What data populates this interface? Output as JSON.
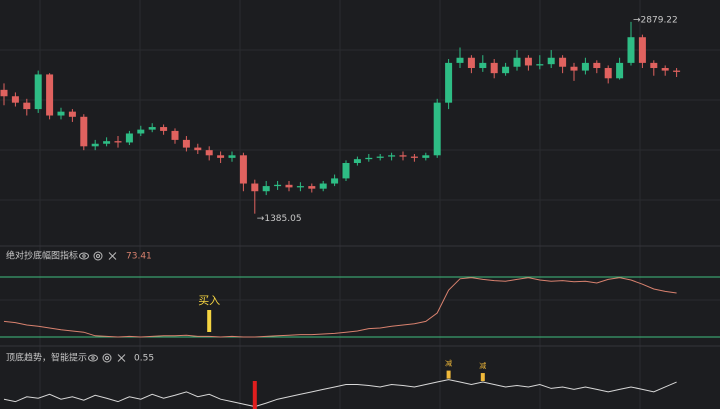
{
  "chart_data": [
    {
      "type": "candlestick",
      "up_color": "#2ebd85",
      "down_color": "#e0625f",
      "ylim": [
        1180,
        3050
      ],
      "open": [
        2350,
        2300,
        2250,
        2200,
        2470,
        2150,
        2180,
        2140,
        1910,
        1930,
        1950,
        1940,
        2010,
        2040,
        2060,
        2030,
        1960,
        1900,
        1880,
        1840,
        1820,
        1840,
        1620,
        1560,
        1600,
        1610,
        1590,
        1600,
        1580,
        1620,
        1660,
        1780,
        1810,
        1820,
        1830,
        1840,
        1830,
        1820,
        1840,
        2250,
        2560,
        2600,
        2520,
        2560,
        2480,
        2530,
        2600,
        2540,
        2550,
        2600,
        2530,
        2500,
        2560,
        2520,
        2440,
        2560,
        2760,
        2560,
        2520,
        2500
      ],
      "high": [
        2400,
        2330,
        2280,
        2500,
        2480,
        2210,
        2200,
        2160,
        1960,
        1980,
        1990,
        2030,
        2070,
        2090,
        2080,
        2050,
        1990,
        1930,
        1910,
        1870,
        1870,
        1860,
        1650,
        1640,
        1640,
        1640,
        1630,
        1620,
        1640,
        1690,
        1800,
        1830,
        1850,
        1850,
        1860,
        1870,
        1850,
        1860,
        2280,
        2590,
        2680,
        2620,
        2620,
        2590,
        2560,
        2660,
        2620,
        2620,
        2660,
        2620,
        2560,
        2600,
        2580,
        2540,
        2600,
        2879.22,
        2780,
        2580,
        2540,
        2520
      ],
      "low": [
        2230,
        2220,
        2150,
        2170,
        2120,
        2120,
        2100,
        1880,
        1880,
        1910,
        1900,
        1920,
        1990,
        2020,
        2000,
        1930,
        1870,
        1850,
        1800,
        1780,
        1790,
        1560,
        1385.05,
        1530,
        1570,
        1560,
        1560,
        1550,
        1560,
        1600,
        1640,
        1760,
        1790,
        1800,
        1800,
        1800,
        1790,
        1800,
        1820,
        2200,
        2520,
        2480,
        2490,
        2440,
        2460,
        2500,
        2500,
        2510,
        2520,
        2480,
        2420,
        2470,
        2480,
        2400,
        2430,
        2540,
        2520,
        2460,
        2460,
        2450
      ],
      "close": [
        2300,
        2250,
        2200,
        2470,
        2150,
        2180,
        2140,
        1910,
        1930,
        1950,
        1940,
        2010,
        2040,
        2060,
        2030,
        1960,
        1900,
        1880,
        1840,
        1820,
        1840,
        1620,
        1560,
        1600,
        1610,
        1590,
        1600,
        1580,
        1620,
        1660,
        1780,
        1810,
        1820,
        1830,
        1840,
        1830,
        1820,
        1840,
        2250,
        2560,
        2600,
        2520,
        2560,
        2480,
        2530,
        2600,
        2540,
        2550,
        2600,
        2530,
        2500,
        2560,
        2520,
        2440,
        2560,
        2760,
        2560,
        2520,
        2500,
        2490
      ],
      "annotations": [
        {
          "at": 55,
          "text": "→2879.22"
        },
        {
          "at": 22,
          "text": "→1385.05"
        }
      ]
    },
    {
      "type": "line",
      "title": "绝对抄底幅图指标",
      "value_text": "73.41",
      "color": "#d9826f",
      "ref_color": "#3fbf7f",
      "ylim": [
        -15,
        125
      ],
      "ref_lines": [
        0,
        100
      ],
      "values": [
        26,
        24,
        20,
        18,
        15,
        12,
        10,
        8,
        2,
        1,
        0,
        1,
        0,
        1,
        2,
        2,
        3,
        1,
        1,
        0,
        1,
        0,
        0,
        1,
        2,
        3,
        4,
        4,
        5,
        6,
        8,
        10,
        14,
        15,
        18,
        20,
        22,
        26,
        40,
        78,
        97,
        99,
        96,
        94,
        93,
        96,
        99,
        95,
        93,
        94,
        92,
        93,
        90,
        96,
        99,
        95,
        88,
        80,
        76,
        73.41
      ],
      "signals": [
        {
          "at": 18,
          "label": "买入",
          "color": "#f5d442"
        }
      ]
    },
    {
      "type": "line",
      "title": "顶底趋势，智能提示",
      "value_text": "0.55",
      "color": "#d8d8d8",
      "ylim": [
        0,
        1
      ],
      "values": [
        0.2,
        0.15,
        0.25,
        0.22,
        0.3,
        0.2,
        0.25,
        0.18,
        0.28,
        0.22,
        0.15,
        0.25,
        0.2,
        0.3,
        0.22,
        0.28,
        0.35,
        0.25,
        0.3,
        0.2,
        0.15,
        0.1,
        0.05,
        0.12,
        0.2,
        0.25,
        0.3,
        0.35,
        0.4,
        0.45,
        0.5,
        0.5,
        0.48,
        0.45,
        0.5,
        0.48,
        0.45,
        0.5,
        0.55,
        0.6,
        0.55,
        0.5,
        0.55,
        0.5,
        0.45,
        0.48,
        0.45,
        0.5,
        0.42,
        0.45,
        0.4,
        0.45,
        0.4,
        0.35,
        0.4,
        0.45,
        0.4,
        0.35,
        0.45,
        0.55
      ],
      "signals": [
        {
          "at": 22,
          "color": "#e01e1e"
        },
        {
          "at": 39,
          "label": "减",
          "color": "#f0b93a"
        },
        {
          "at": 42,
          "label": "减",
          "color": "#f0b93a"
        }
      ]
    }
  ]
}
